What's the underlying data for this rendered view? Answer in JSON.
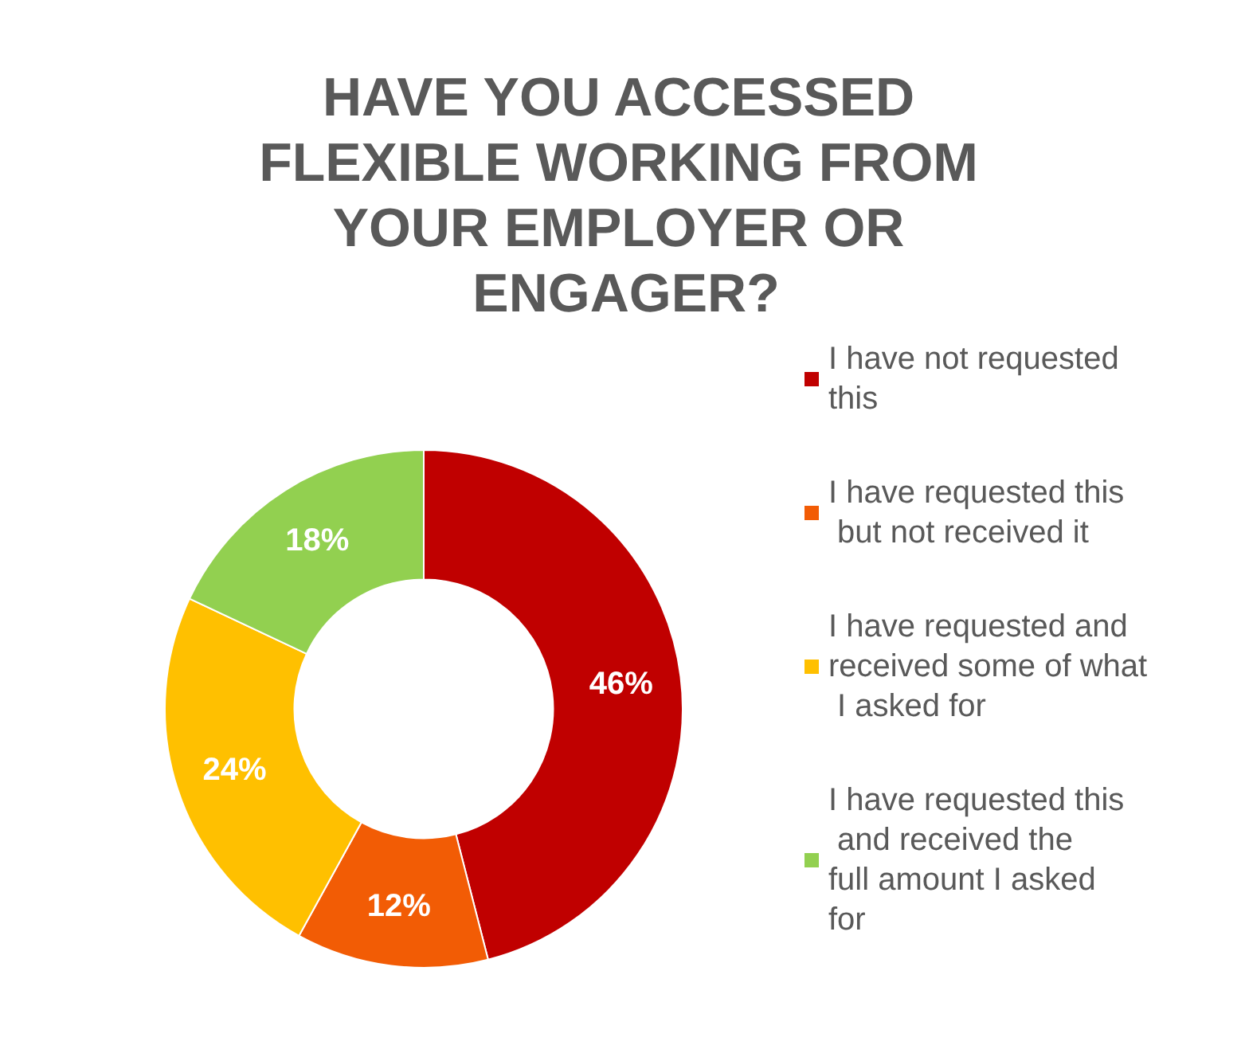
{
  "chart_data": {
    "type": "donut",
    "title": "HAVE YOU ACCESSED FLEXIBLE WORKING FROM YOUR EMPLOYER OR ENGAGER?",
    "categories": [
      "I have not requested this",
      "I have requested this but not received it",
      "I have requested and received some of what I asked for",
      "I have requested this and received the full amount I asked for"
    ],
    "values": [
      46,
      12,
      24,
      18
    ],
    "colors": [
      "#c00000",
      "#f25c05",
      "#ffc000",
      "#92d050"
    ],
    "value_labels": [
      "46%",
      "12%",
      "24%",
      "18%"
    ],
    "legend": "right"
  }
}
